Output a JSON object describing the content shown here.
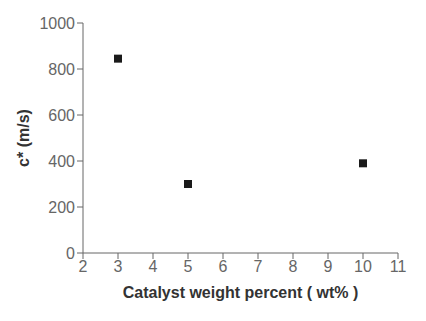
{
  "chart_data": {
    "type": "scatter",
    "x": [
      3,
      5,
      10
    ],
    "values": [
      845,
      300,
      390
    ],
    "color": "#1a1a1a",
    "marker": "square",
    "xlabel": "Catalyst weight percent ( wt% )",
    "ylabel": "c* (m/s)",
    "xlim": [
      2,
      11
    ],
    "ylim": [
      0,
      1000
    ],
    "xticks": [
      2,
      3,
      4,
      5,
      6,
      7,
      8,
      9,
      10,
      11
    ],
    "yticks": [
      0,
      200,
      400,
      600,
      800,
      1000
    ],
    "grid": false
  }
}
